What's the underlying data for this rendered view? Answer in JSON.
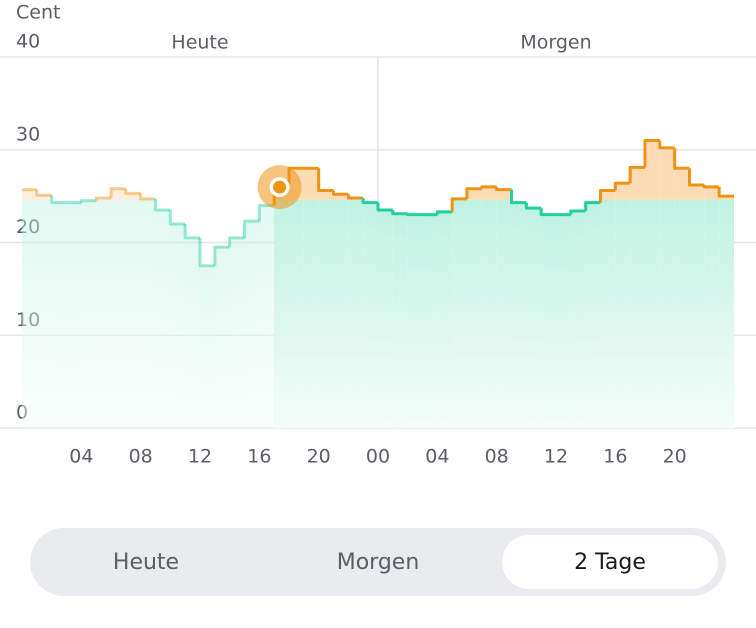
{
  "chart_data": {
    "type": "step",
    "y_label": "Cent",
    "day_labels": [
      "Heute",
      "Morgen"
    ],
    "xlim": [
      0,
      48
    ],
    "xticks": [
      {
        "value": 4,
        "label": "04"
      },
      {
        "value": 8,
        "label": "08"
      },
      {
        "value": 12,
        "label": "12"
      },
      {
        "value": 16,
        "label": "16"
      },
      {
        "value": 20,
        "label": "20"
      },
      {
        "value": 24,
        "label": "00"
      },
      {
        "value": 28,
        "label": "04"
      },
      {
        "value": 32,
        "label": "08"
      },
      {
        "value": 36,
        "label": "12"
      },
      {
        "value": 40,
        "label": "16"
      },
      {
        "value": 44,
        "label": "20"
      }
    ],
    "ylim": [
      0,
      40
    ],
    "yticks": [
      0,
      10,
      20,
      30,
      40
    ],
    "grid": true,
    "threshold": 24.6,
    "highlight_index": 17,
    "above_color": "#ef9315",
    "below_color": "#1fcf9f",
    "values": [
      25.7,
      25.1,
      24.3,
      24.3,
      24.5,
      24.8,
      25.8,
      25.3,
      24.7,
      23.5,
      22.0,
      20.5,
      17.5,
      19.5,
      20.5,
      22.3,
      24.0,
      26.3,
      28.0,
      28.0,
      25.6,
      25.2,
      24.8,
      24.3,
      23.5,
      23.1,
      23.0,
      23.0,
      23.3,
      24.7,
      25.8,
      26.0,
      25.7,
      24.3,
      23.7,
      23.0,
      23.0,
      23.4,
      24.3,
      25.6,
      26.4,
      28.1,
      31.0,
      30.2,
      28.0,
      26.2,
      26.0,
      25.0
    ]
  },
  "tabs": {
    "labels": [
      "Heute",
      "Morgen",
      "2 Tage"
    ],
    "selected": 2
  }
}
